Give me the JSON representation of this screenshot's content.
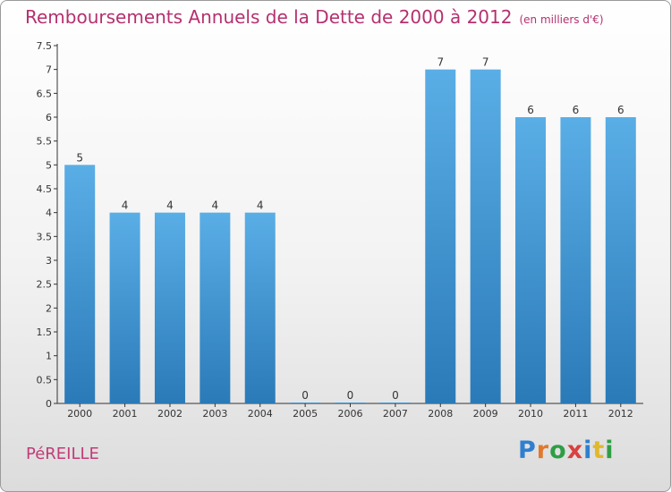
{
  "page": {
    "title": "Remboursements Annuels de la Dette de 2000 à 2012",
    "unit": "(en milliers d'€)",
    "commune": "PéREILLE",
    "logo": {
      "letters": [
        "P",
        "r",
        "o",
        "x",
        "i",
        "t",
        "i"
      ],
      "colors": [
        "#2f7fd0",
        "#e0792b",
        "#2e9e45",
        "#d94040",
        "#2f7fd0",
        "#e0b82b",
        "#2e9e45"
      ]
    }
  },
  "chart_data": {
    "type": "bar",
    "title": "Remboursements Annuels de la Dette de 2000 à 2012",
    "xlabel": "",
    "ylabel": "",
    "categories": [
      "2000",
      "2001",
      "2002",
      "2003",
      "2004",
      "2005",
      "2006",
      "2007",
      "2008",
      "2009",
      "2010",
      "2011",
      "2012"
    ],
    "values": [
      5,
      4,
      4,
      4,
      4,
      0,
      0,
      0,
      7,
      7,
      6,
      6,
      6
    ],
    "value_labels": [
      "5",
      "4",
      "4",
      "4",
      "4",
      "0",
      "0",
      "0",
      "7",
      "7",
      "6",
      "6",
      "6"
    ],
    "ylim": [
      0,
      7.5
    ],
    "yticks": [
      0,
      0.5,
      1,
      1.5,
      2,
      2.5,
      3,
      3.5,
      4,
      4.5,
      5,
      5.5,
      6,
      6.5,
      7,
      7.5
    ],
    "ytick_labels": [
      "0",
      "0.5",
      "1",
      "1.5",
      "2",
      "2.5",
      "3",
      "3.5",
      "4",
      "4.5",
      "5",
      "5.5",
      "6",
      "6.5",
      "7",
      "7.5"
    ],
    "grid": false,
    "legend": "none",
    "colors": {
      "bar_top": "#5aaee6",
      "bar_bottom": "#2a7ab8",
      "title": "#b5306f"
    }
  }
}
